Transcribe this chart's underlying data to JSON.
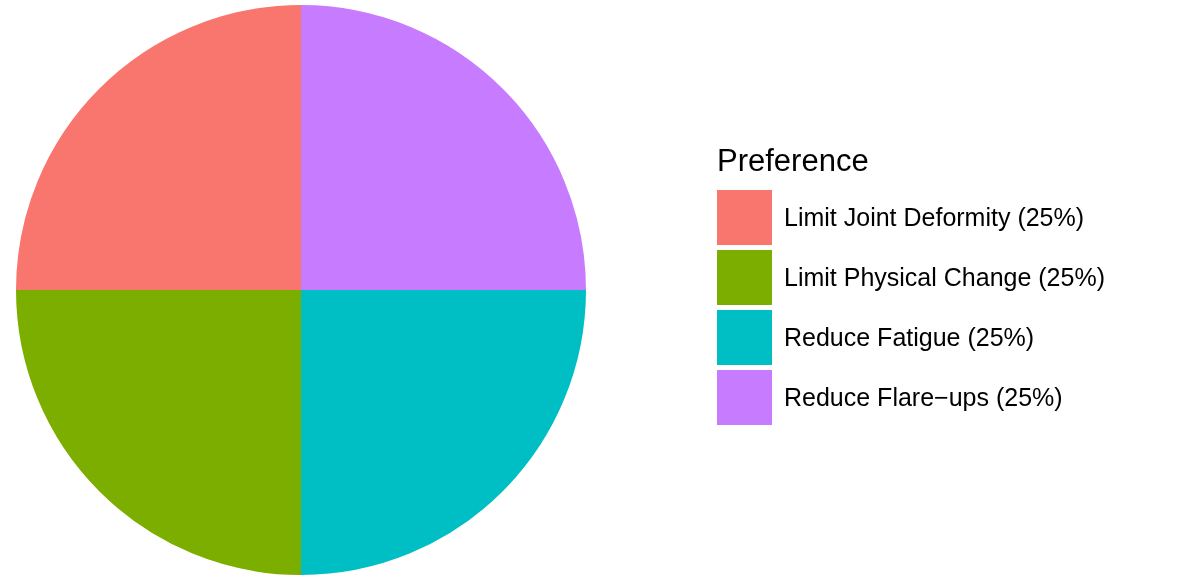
{
  "chart_data": {
    "type": "pie",
    "legend_title": "Preference",
    "categories": [
      "Limit Joint Deformity (25%)",
      "Limit Physical Change (25%)",
      "Reduce Fatigue (25%)",
      "Reduce Flare−ups (25%)"
    ],
    "values": [
      25,
      25,
      25,
      25
    ],
    "colors": [
      "#f8766d",
      "#7cae00",
      "#00bfc4",
      "#c77cff"
    ],
    "legend": "right"
  }
}
